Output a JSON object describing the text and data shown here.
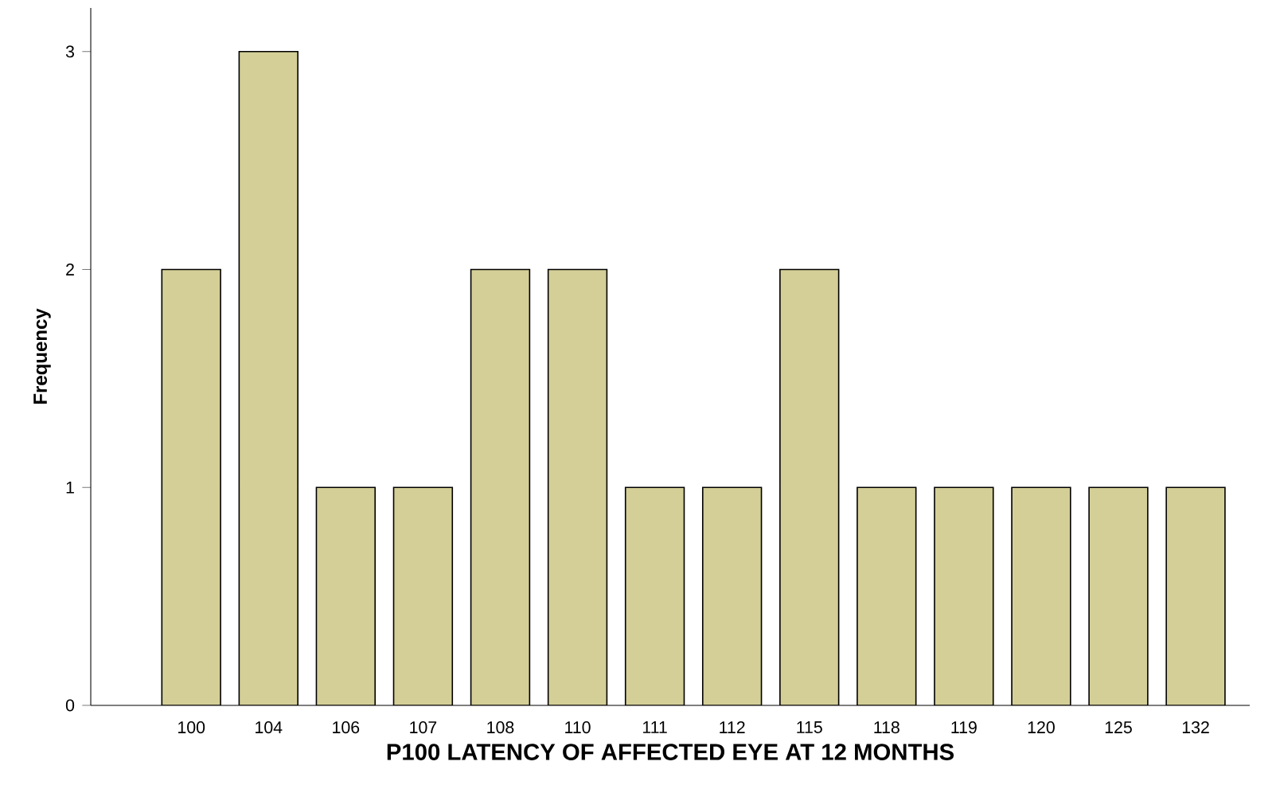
{
  "chart_data": {
    "type": "bar",
    "xlabel": "P100 LATENCY OF AFFECTED  EYE AT 12 MONTHS",
    "ylabel": "Frequency",
    "categories": [
      "100",
      "104",
      "106",
      "107",
      "108",
      "110",
      "111",
      "112",
      "115",
      "118",
      "119",
      "120",
      "125",
      "132"
    ],
    "values": [
      2,
      3,
      1,
      1,
      2,
      2,
      1,
      1,
      2,
      1,
      1,
      1,
      1,
      1
    ],
    "color": "#d4cf97",
    "ylim": [
      0,
      3.2
    ],
    "yticks": [
      0,
      1,
      2,
      3
    ],
    "grid": false
  }
}
